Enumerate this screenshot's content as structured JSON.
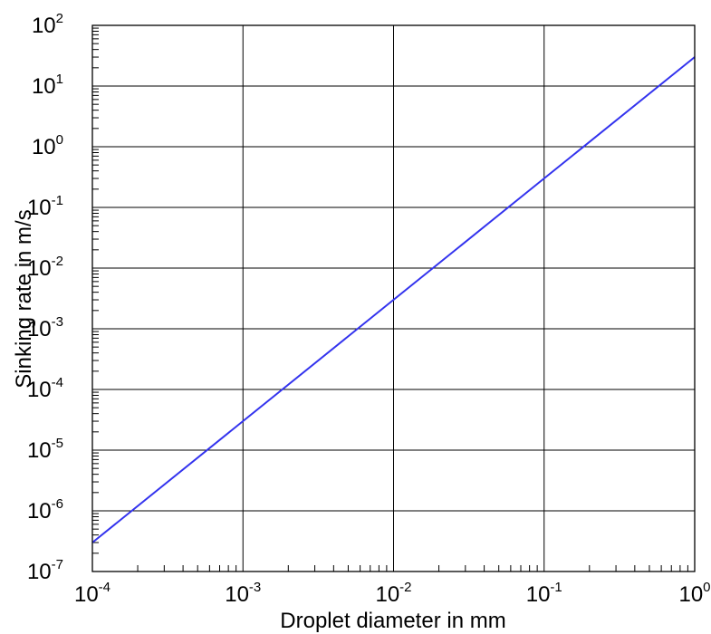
{
  "chart_data": {
    "type": "line",
    "xlabel": "Droplet diameter in mm",
    "ylabel": "Sinking rate in m/s",
    "xscale": "log",
    "yscale": "log",
    "xlim": [
      0.0001,
      1
    ],
    "ylim": [
      1e-07,
      100
    ],
    "grid": true,
    "x_ticks": [
      {
        "base": "10",
        "exp": "-4",
        "value": 0.0001
      },
      {
        "base": "10",
        "exp": "-3",
        "value": 0.001
      },
      {
        "base": "10",
        "exp": "-2",
        "value": 0.01
      },
      {
        "base": "10",
        "exp": "-1",
        "value": 0.1
      },
      {
        "base": "10",
        "exp": "0",
        "value": 1
      }
    ],
    "y_ticks": [
      {
        "base": "10",
        "exp": "-7",
        "value": 1e-07
      },
      {
        "base": "10",
        "exp": "-6",
        "value": 1e-06
      },
      {
        "base": "10",
        "exp": "-5",
        "value": 1e-05
      },
      {
        "base": "10",
        "exp": "-4",
        "value": 0.0001
      },
      {
        "base": "10",
        "exp": "-3",
        "value": 0.001
      },
      {
        "base": "10",
        "exp": "-2",
        "value": 0.01
      },
      {
        "base": "10",
        "exp": "-1",
        "value": 0.1
      },
      {
        "base": "10",
        "exp": "0",
        "value": 1
      },
      {
        "base": "10",
        "exp": "1",
        "value": 10
      },
      {
        "base": "10",
        "exp": "2",
        "value": 100
      }
    ],
    "series": [
      {
        "color": "#3333ee",
        "x": [
          0.0001,
          0.001,
          0.01,
          0.1,
          1
        ],
        "y": [
          3e-07,
          3e-05,
          0.003,
          0.3,
          30
        ]
      }
    ]
  }
}
